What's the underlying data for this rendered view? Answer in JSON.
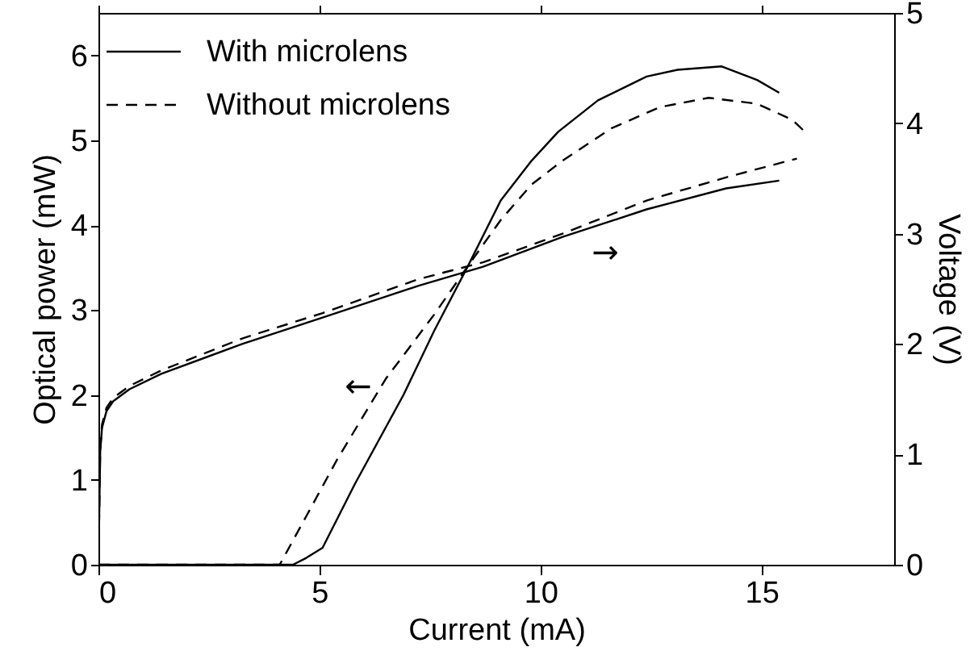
{
  "chart_data": {
    "type": "line",
    "xlabel": "Current (mA)",
    "ylabel": "Optical power (mW)",
    "y2label": "Voltage (V)",
    "xlim": [
      0,
      18
    ],
    "xticks": [
      0,
      5,
      10,
      15
    ],
    "ylim": [
      0,
      6.5
    ],
    "yticks": [
      0,
      1,
      2,
      3,
      4,
      5,
      6
    ],
    "y2lim": [
      0,
      5
    ],
    "y2ticks": [
      0,
      1,
      2,
      3,
      4,
      5
    ],
    "grid": false,
    "legend": "top left",
    "marker": "none",
    "annotations": [
      "←",
      "→"
    ],
    "series": [
      {
        "name": "With microlens",
        "color": "#000000",
        "line_style": "solid",
        "x": [
          0,
          1,
          2,
          3,
          4,
          4.4,
          4.7,
          5.07,
          5.8,
          6.9,
          7.6,
          8.36,
          9.1,
          9.8,
          10.4,
          11.3,
          12.4,
          13.1,
          14.1,
          14.9,
          15.4
        ],
        "values": [
          0,
          0,
          0,
          0,
          0,
          0,
          0.08,
          0.2,
          0.95,
          2.0,
          2.76,
          3.52,
          4.29,
          4.76,
          5.1,
          5.47,
          5.75,
          5.83,
          5.87,
          5.71,
          5.56
        ]
      },
      {
        "name": "Without microlens",
        "color": "#000000",
        "line_style": "dashed",
        "x": [
          0,
          1,
          2,
          3,
          4.1,
          4.7,
          5.4,
          6.5,
          7.6,
          8.36,
          9.1,
          9.8,
          10.5,
          11.6,
          12.7,
          13.8,
          14.9,
          15.7,
          16.0
        ],
        "values": [
          0,
          0,
          0,
          0,
          0,
          0.57,
          1.24,
          2.19,
          2.95,
          3.52,
          4.06,
          4.48,
          4.76,
          5.14,
          5.39,
          5.5,
          5.43,
          5.24,
          5.09
        ]
      },
      {
        "color": "#000000",
        "line_style": "solid",
        "axis": "y2",
        "x": [
          0,
          0.04,
          0.08,
          0.18,
          0.33,
          0.7,
          1.42,
          3.25,
          5.07,
          7.26,
          8.7,
          10.5,
          12.4,
          14.2,
          15.4
        ],
        "values": [
          0,
          1.02,
          1.24,
          1.39,
          1.48,
          1.59,
          1.73,
          2.0,
          2.24,
          2.53,
          2.7,
          2.97,
          3.22,
          3.41,
          3.48
        ]
      },
      {
        "color": "#000000",
        "line_style": "dashed",
        "axis": "y2",
        "x": [
          0,
          0.04,
          0.08,
          0.18,
          0.33,
          0.7,
          1.42,
          3.25,
          5.07,
          7.26,
          8.7,
          10.5,
          12.4,
          14.2,
          15.8
        ],
        "values": [
          0,
          1.04,
          1.27,
          1.42,
          1.51,
          1.62,
          1.76,
          2.05,
          2.28,
          2.59,
          2.74,
          3.0,
          3.3,
          3.51,
          3.68
        ]
      }
    ]
  }
}
